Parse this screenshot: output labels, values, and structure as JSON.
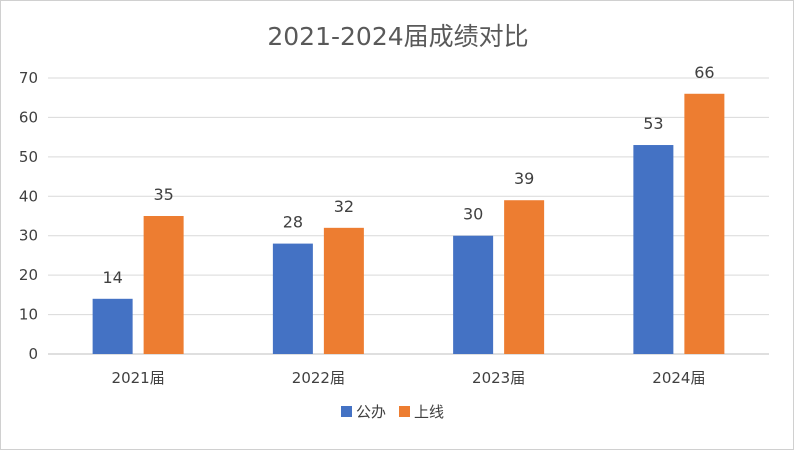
{
  "chart_data": {
    "type": "bar",
    "title": "2021-2024届成绩对比",
    "categories": [
      "2021届",
      "2022届",
      "2023届",
      "2024届"
    ],
    "series": [
      {
        "name": "公办",
        "values": [
          14,
          28,
          30,
          53
        ],
        "color": "#4472C4"
      },
      {
        "name": "上线",
        "values": [
          35,
          32,
          39,
          66
        ],
        "color": "#ED7D31"
      }
    ],
    "ylim": [
      0,
      70
    ],
    "yticks": [
      0,
      10,
      20,
      30,
      40,
      50,
      60,
      70
    ],
    "grid": true,
    "legend_position": "bottom",
    "data_labels": true
  }
}
